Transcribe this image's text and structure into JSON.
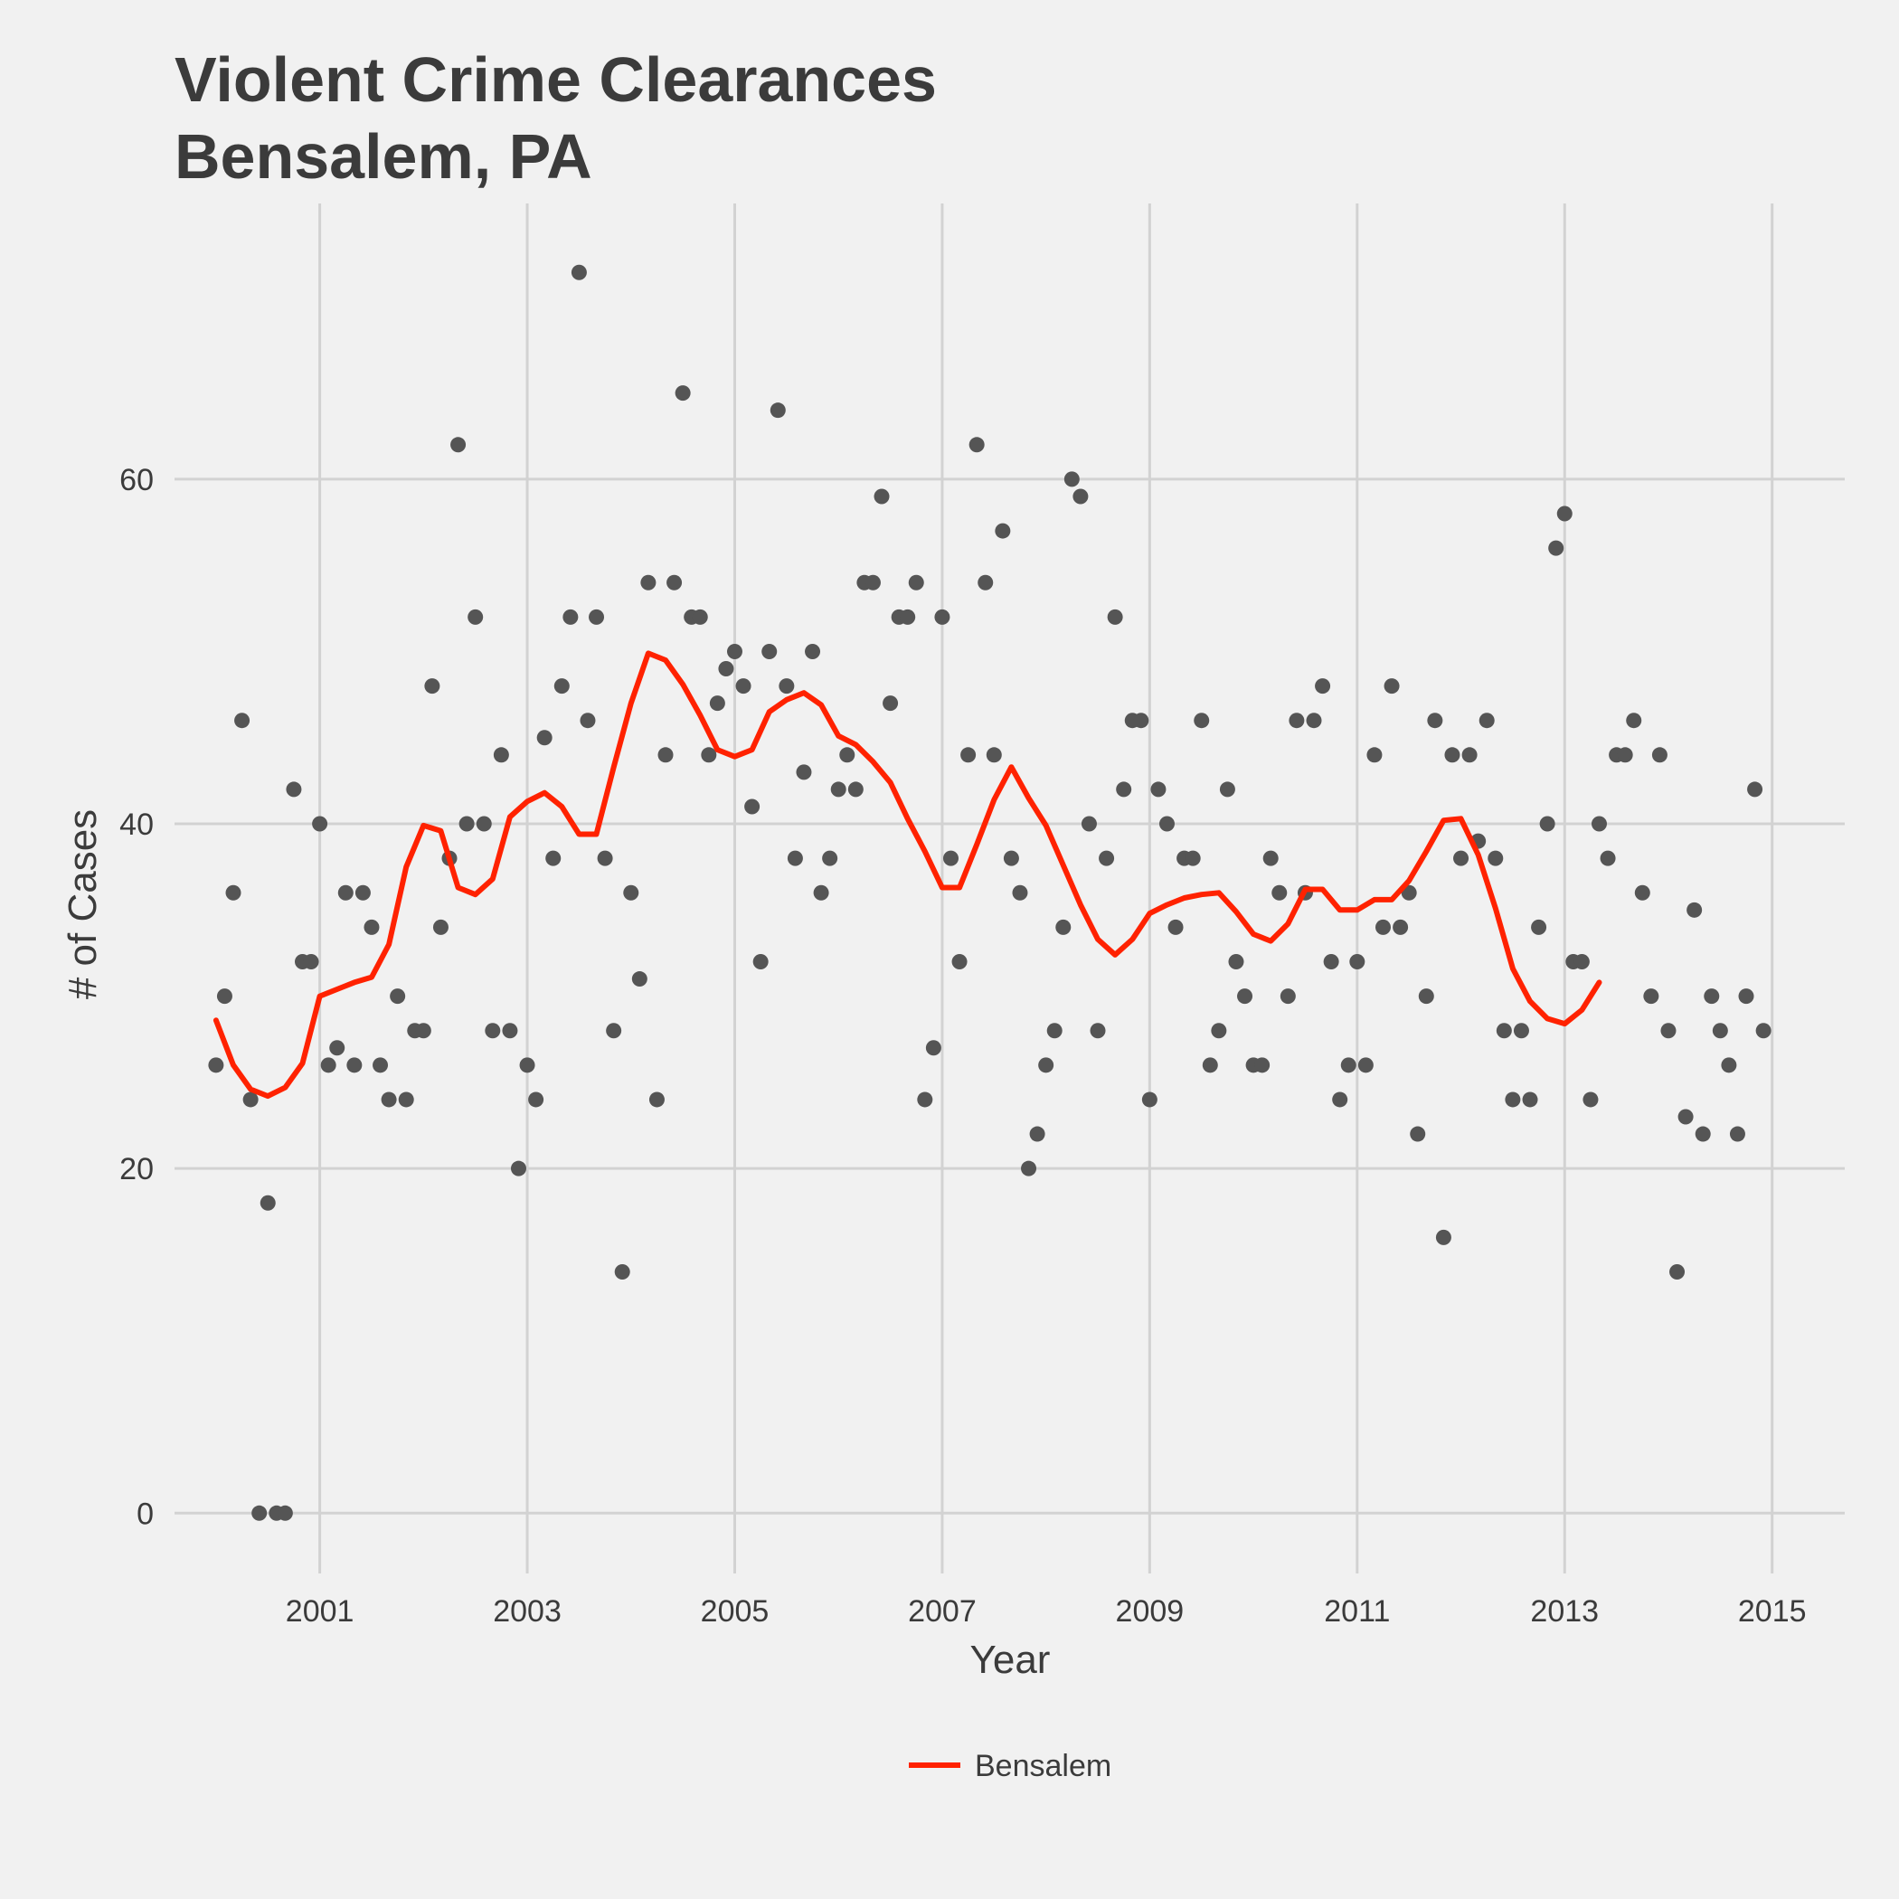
{
  "chart_data": {
    "type": "scatter",
    "title": [
      "Violent Crime Clearances",
      "Bensalem, PA"
    ],
    "xlabel": "Year",
    "ylabel": "# of Cases",
    "xlim": [
      1999.6,
      2015.7
    ],
    "ylim": [
      -3.5,
      76
    ],
    "x_ticks": [
      2001,
      2003,
      2005,
      2007,
      2009,
      2011,
      2013,
      2015
    ],
    "y_ticks": [
      0,
      20,
      40,
      60
    ],
    "grid": true,
    "legend": {
      "position": "bottom",
      "entries": [
        "Bensalem"
      ]
    },
    "colors": {
      "background": "#f1f1f1",
      "points": "#555555",
      "line": "#ff2200",
      "grid": "#d2d2d2"
    },
    "points": {
      "start_year": 2000,
      "values": [
        26,
        30,
        36,
        46,
        24,
        0,
        18,
        0,
        0,
        42,
        32,
        32,
        40,
        26,
        27,
        36,
        26,
        36,
        34,
        26,
        24,
        30,
        24,
        28,
        28,
        48,
        34,
        38,
        62,
        40,
        52,
        40,
        28,
        44,
        28,
        20,
        26,
        24,
        45,
        38,
        48,
        52,
        72,
        46,
        52,
        38,
        28,
        14,
        36,
        31,
        54,
        24,
        44,
        54,
        65,
        52,
        52,
        44,
        47,
        49,
        50,
        48,
        41,
        32,
        50,
        64,
        48,
        38,
        43,
        50,
        36,
        38,
        42,
        44,
        42,
        54,
        54,
        59,
        47,
        52,
        52,
        54,
        24,
        27,
        52,
        38,
        32,
        44,
        62,
        54,
        44,
        57,
        38,
        36,
        20,
        22,
        26,
        28,
        34,
        60,
        59,
        40,
        28,
        38,
        52,
        42,
        46,
        46,
        24,
        42,
        40,
        34,
        38,
        38,
        46,
        26,
        28,
        42,
        32,
        30,
        26,
        26,
        38,
        36,
        30,
        46,
        36,
        46,
        48,
        32,
        24,
        26,
        32,
        26,
        44,
        34,
        48,
        34,
        36,
        22,
        30,
        46,
        16,
        44,
        38,
        44,
        39,
        46,
        38,
        28,
        24,
        28,
        24,
        34,
        40,
        56,
        58,
        32,
        32,
        24,
        40,
        38,
        44,
        44,
        46,
        36,
        30,
        44,
        28,
        14,
        23,
        35,
        22,
        30,
        28,
        26,
        22,
        30,
        42,
        28
      ]
    },
    "series": [
      {
        "name": "Bensalem",
        "start_year": 2000,
        "values": [
          28.6,
          26,
          24.6,
          24.2,
          24.7,
          26.1,
          30,
          30.4,
          30.8,
          31.1,
          33,
          37.5,
          39.9,
          39.6,
          36.3,
          35.9,
          36.8,
          40.4,
          41.3,
          41.8,
          41,
          39.4,
          39.4,
          43.3,
          47,
          49.9,
          49.5,
          48.1,
          46.3,
          44.3,
          43.9,
          44.3,
          46.5,
          47.2,
          47.6,
          46.9,
          45.1,
          44.6,
          43.6,
          42.4,
          40.3,
          38.4,
          36.3,
          36.3,
          38.8,
          41.4,
          43.3,
          41.5,
          39.9,
          37.6,
          35.3,
          33.3,
          32.4,
          33.3,
          34.8,
          35.3,
          35.7,
          35.9,
          36,
          34.9,
          33.6,
          33.2,
          34.2,
          36.2,
          36.2,
          35,
          35,
          35.6,
          35.6,
          36.7,
          38.4,
          40.2,
          40.3,
          38.2,
          35.1,
          31.6,
          29.7,
          28.7,
          28.4,
          29.2,
          30.8
        ]
      }
    ]
  }
}
